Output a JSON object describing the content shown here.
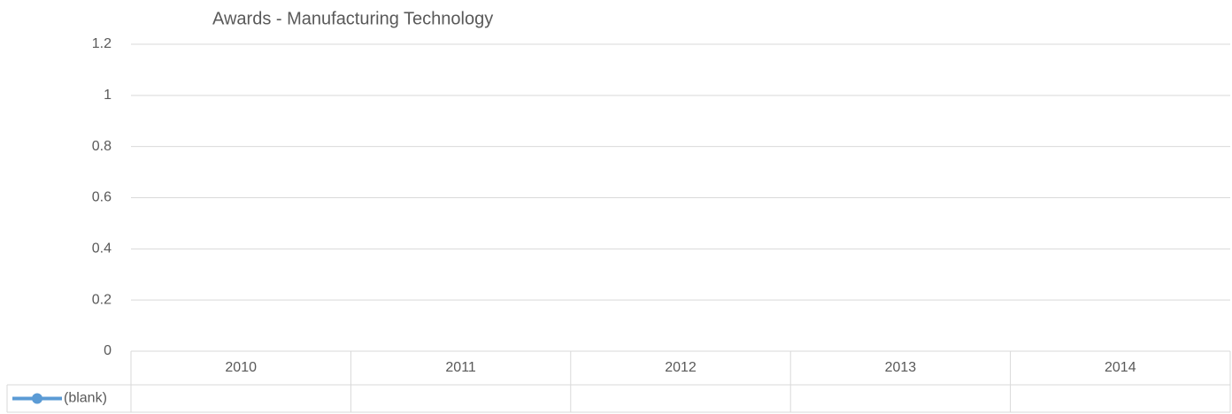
{
  "chart_data": {
    "type": "line",
    "title": "Awards  - Manufacturing Technology",
    "categories": [
      "2010",
      "2011",
      "2012",
      "2013",
      "2014"
    ],
    "series": [
      {
        "name": "(blank)",
        "color": "#5b9bd5",
        "values": [
          null,
          null,
          null,
          null,
          null
        ]
      }
    ],
    "ylim": [
      0,
      1.2
    ],
    "yticks": [
      0,
      0.2,
      0.4,
      0.6,
      0.8,
      1,
      1.2
    ],
    "grid": true,
    "data_table": true
  }
}
